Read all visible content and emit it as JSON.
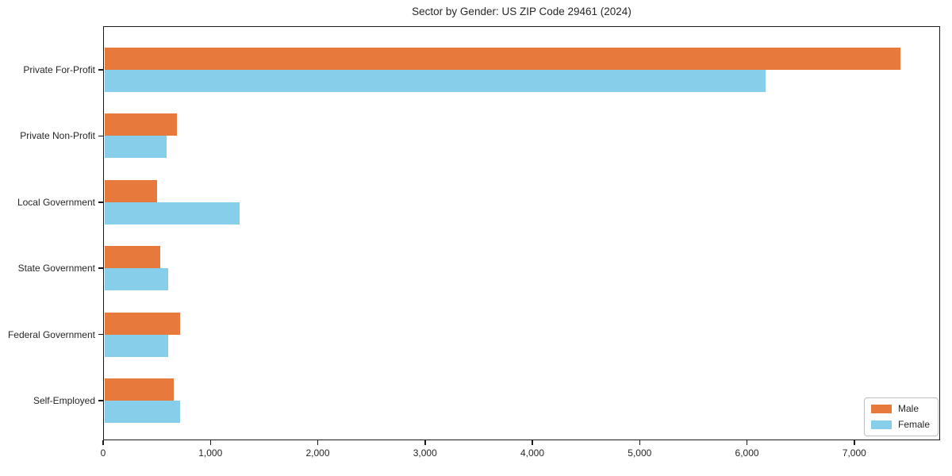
{
  "title": "Sector by Gender: US ZIP Code 29461 (2024)",
  "chart_data": {
    "type": "bar",
    "orientation": "horizontal",
    "title": "Sector by Gender: US ZIP Code 29461 (2024)",
    "xlabel": "",
    "ylabel": "",
    "categories": [
      "Private For-Profit",
      "Private Non-Profit",
      "Local Government",
      "State Government",
      "Federal Government",
      "Self-Employed"
    ],
    "series": [
      {
        "name": "Male",
        "color": "#E8793C",
        "values": [
          7430,
          690,
          500,
          530,
          715,
          660
        ]
      },
      {
        "name": "Female",
        "color": "#87CEEB",
        "values": [
          6170,
          595,
          1270,
          605,
          605,
          720
        ]
      }
    ],
    "xlim": [
      0,
      7800
    ],
    "xticks": [
      0,
      1000,
      2000,
      3000,
      4000,
      5000,
      6000,
      7000
    ],
    "xtick_labels": [
      "0",
      "1,000",
      "2,000",
      "3,000",
      "4,000",
      "5,000",
      "6,000",
      "7,000"
    ],
    "grid": false,
    "legend_position": "lower right"
  }
}
